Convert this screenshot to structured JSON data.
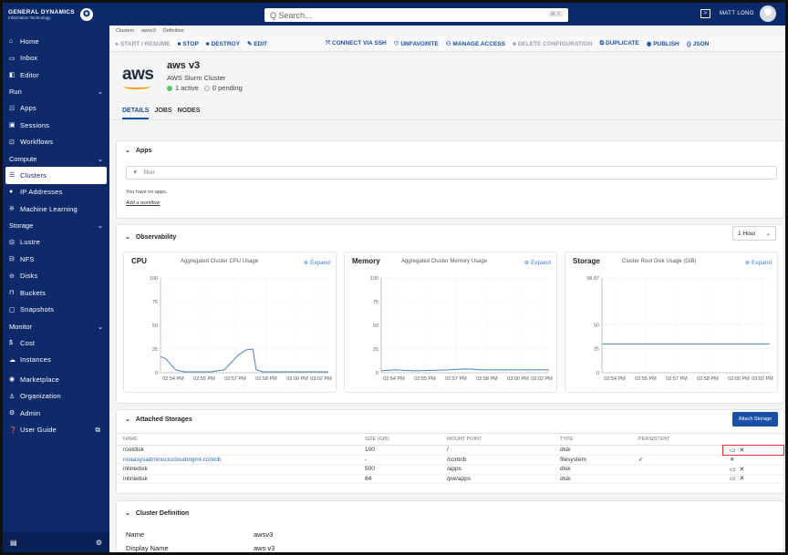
{
  "brand": {
    "name": "GENERAL DYNAMICS",
    "sub": "Information Technology"
  },
  "search": {
    "placeholder": "Q Search...",
    "shortcut": "⌘ K"
  },
  "user": {
    "name": "MATT LONG"
  },
  "sidebar": {
    "items": [
      {
        "label": "Home",
        "icon": "home-icon",
        "glyph": "⌂"
      },
      {
        "label": "Inbox",
        "icon": "inbox-icon",
        "glyph": "▭"
      },
      {
        "label": "Editor",
        "icon": "editor-icon",
        "glyph": "◧"
      }
    ],
    "run": {
      "label": "Run",
      "items": [
        {
          "label": "Apps",
          "icon": "apps-icon",
          "glyph": "☷"
        },
        {
          "label": "Sessions",
          "icon": "sessions-icon",
          "glyph": "▣"
        },
        {
          "label": "Workflows",
          "icon": "workflows-icon",
          "glyph": "⊡"
        }
      ]
    },
    "compute": {
      "label": "Compute",
      "items": [
        {
          "label": "Clusters",
          "icon": "clusters-icon",
          "glyph": "☰"
        },
        {
          "label": "IP Addresses",
          "icon": "ip-icon",
          "glyph": "●"
        },
        {
          "label": "Machine Learning",
          "icon": "ml-icon",
          "glyph": "❊"
        }
      ]
    },
    "storage": {
      "label": "Storage",
      "items": [
        {
          "label": "Lustre",
          "icon": "lustre-icon",
          "glyph": "⊟"
        },
        {
          "label": "NFS",
          "icon": "nfs-icon",
          "glyph": "⊟"
        },
        {
          "label": "Disks",
          "icon": "disks-icon",
          "glyph": "⊖"
        },
        {
          "label": "Buckets",
          "icon": "buckets-icon",
          "glyph": "⊓"
        },
        {
          "label": "Snapshots",
          "icon": "snapshots-icon",
          "glyph": "▢"
        }
      ]
    },
    "monitor": {
      "label": "Monitor",
      "items": [
        {
          "label": "Cost",
          "icon": "cost-icon",
          "glyph": "$"
        },
        {
          "label": "Instances",
          "icon": "instances-icon",
          "glyph": "☁"
        }
      ]
    },
    "tail": [
      {
        "label": "Marketplace",
        "icon": "marketplace-icon",
        "glyph": "◉"
      },
      {
        "label": "Organization",
        "icon": "organization-icon",
        "glyph": "♙"
      },
      {
        "label": "Admin",
        "icon": "admin-icon",
        "glyph": "⚙"
      },
      {
        "label": "User Guide",
        "icon": "guide-icon",
        "glyph": "❓"
      }
    ]
  },
  "breadcrumb": [
    "Clusters",
    "awsv3",
    "Definition"
  ],
  "actions": {
    "start": "▸ START / RESUME",
    "stop": "■ STOP",
    "destroy": "■ DESTROY",
    "edit": "✎ EDIT",
    "ssh": "⤧ CONNECT VIA SSH",
    "unfav": "♡ UNFAVORITE",
    "access": "⚇ MANAGE ACCESS",
    "delete": "■ DELETE CONFIGURATION",
    "duplicate": "⧉ DUPLICATE",
    "publish": "◉ PUBLISH",
    "json": "{} JSON"
  },
  "cluster": {
    "logo": "aws",
    "name": "aws v3",
    "subtitle": "AWS Slurm Cluster",
    "active": "1 active",
    "pending": "0 pending"
  },
  "tabs": [
    "DETAILS",
    "JOBS",
    "NODES"
  ],
  "apps": {
    "title": "Apps",
    "filter_placeholder": "filter",
    "empty": "You have no apps.",
    "add": "Add a workflow"
  },
  "observability": {
    "title": "Observability",
    "range": "1 Hour"
  },
  "charts": [
    {
      "title": "CPU",
      "subtitle": "Aggregated Cluster CPU Usage",
      "expand": "⊕ Expand"
    },
    {
      "title": "Memory",
      "subtitle": "Aggregated Cluster Memory Usage",
      "expand": "⊕ Expand"
    },
    {
      "title": "Storage",
      "subtitle": "Cluster Root Disk Usage (GiB)",
      "expand": "⊕ Expand"
    }
  ],
  "chart_data": [
    {
      "type": "line",
      "title": "CPU",
      "subtitle": "Aggregated Cluster CPU Usage",
      "x": [
        "02:54 PM",
        "02:55 PM",
        "02:57 PM",
        "02:58 PM",
        "03:00 PM",
        "03:02 PM"
      ],
      "yticks": [
        0,
        25,
        50,
        75,
        100
      ],
      "ylim": [
        0,
        100
      ],
      "points": [
        [
          0,
          17
        ],
        [
          0.03,
          15
        ],
        [
          0.09,
          3
        ],
        [
          0.14,
          1
        ],
        [
          0.3,
          1
        ],
        [
          0.38,
          3
        ],
        [
          0.46,
          18
        ],
        [
          0.51,
          24
        ],
        [
          0.55,
          25
        ],
        [
          0.57,
          3
        ],
        [
          0.61,
          1
        ],
        [
          1.0,
          1
        ]
      ]
    },
    {
      "type": "line",
      "title": "Memory",
      "subtitle": "Aggregated Cluster Memory Usage",
      "x": [
        "02:54 PM",
        "02:55 PM",
        "02:57 PM",
        "02:58 PM",
        "03:00 PM",
        "03:02 PM"
      ],
      "yticks": [
        0,
        25,
        50,
        75,
        100
      ],
      "ylim": [
        0,
        100
      ],
      "points": [
        [
          0,
          2
        ],
        [
          0.08,
          3
        ],
        [
          0.2,
          2
        ],
        [
          0.4,
          3
        ],
        [
          0.5,
          4
        ],
        [
          0.6,
          3
        ],
        [
          0.8,
          3
        ],
        [
          1.0,
          3
        ]
      ]
    },
    {
      "type": "line",
      "title": "Storage",
      "subtitle": "Cluster Root Disk Usage (GiB)",
      "x": [
        "02:54 PM",
        "02:55 PM",
        "02:57 PM",
        "02:58 PM",
        "03:00 PM",
        "03:02 PM"
      ],
      "yticks": [
        0,
        25,
        50,
        98.87
      ],
      "ylim": [
        0,
        98.87
      ],
      "points": [
        [
          0,
          30
        ],
        [
          1.0,
          30
        ]
      ]
    }
  ],
  "storages": {
    "title": "Attached Storages",
    "button": "Attach Storage",
    "columns": [
      "NAME",
      "SIZE (GIB)",
      "MOUNT POINT",
      "TYPE",
      "PERSISTENT"
    ],
    "rows": [
      {
        "name": "rootdisk",
        "size": "100",
        "mount": "/",
        "type": "disk",
        "persistent": "",
        "actions": "▭ ✕"
      },
      {
        "name": "noaasysadminociocloudmgmt-contrib",
        "size": "-",
        "mount": "/contrib",
        "type": "filesystem",
        "persistent": "✔",
        "actions": "✕"
      },
      {
        "name": "inlinedisk",
        "size": "500",
        "mount": "/apps",
        "type": "disk",
        "persistent": "",
        "actions": "▭ ✕"
      },
      {
        "name": "inlinedisk",
        "size": "64",
        "mount": "/pw/apps",
        "type": "disk",
        "persistent": "",
        "actions": "▭ ✕"
      }
    ]
  },
  "definition": {
    "title": "Cluster Definition",
    "rows": [
      {
        "label": "Name",
        "value": "awsv3"
      },
      {
        "label": "Display Name",
        "value": "aws v3"
      }
    ]
  }
}
